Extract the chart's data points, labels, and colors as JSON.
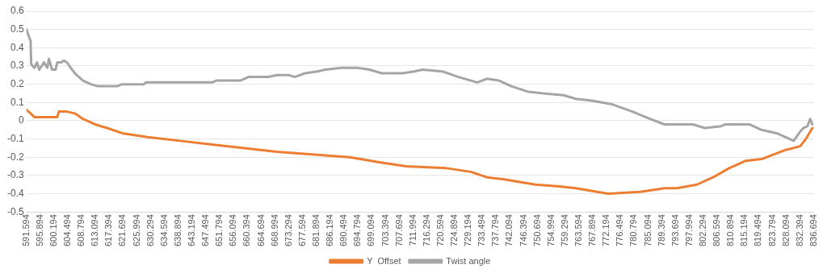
{
  "chart_data": {
    "type": "line",
    "legend": "bottom",
    "grid": "y",
    "marker": "none",
    "line_style": "solid",
    "ylim": [
      -0.5,
      0.6
    ],
    "yticks": [
      -0.5,
      -0.4,
      -0.3,
      -0.2,
      -0.1,
      0,
      0.1,
      0.2,
      0.3,
      0.4,
      0.5,
      0.6
    ],
    "xlim": [
      591.594,
      836.694
    ],
    "xticks": [
      591.594,
      595.894,
      600.194,
      604.494,
      608.794,
      613.094,
      617.394,
      621.694,
      625.994,
      630.294,
      634.594,
      638.894,
      643.194,
      647.494,
      651.794,
      656.094,
      660.394,
      664.694,
      668.994,
      673.294,
      677.594,
      681.894,
      686.194,
      690.494,
      694.794,
      699.094,
      703.394,
      707.694,
      711.994,
      716.294,
      720.594,
      724.894,
      729.194,
      733.494,
      737.794,
      742.094,
      746.394,
      750.694,
      754.994,
      759.294,
      763.594,
      767.894,
      772.194,
      776.494,
      780.794,
      785.094,
      789.394,
      793.694,
      797.994,
      802.294,
      806.594,
      810.894,
      815.194,
      819.494,
      823.794,
      828.094,
      832.394,
      836.694
    ],
    "series": [
      {
        "name": "Y  Offset",
        "color": "#ed7d31",
        "x": [
          591.6,
          592.9,
          594.1,
          596.6,
          599.1,
          601.2,
          601.7,
          604.2,
          606.7,
          609.2,
          613.0,
          616.7,
          621.8,
          629.3,
          639.4,
          649.4,
          659.5,
          669.5,
          677.1,
          692.2,
          702.2,
          709.8,
          722.3,
          729.9,
          734.9,
          739.9,
          750.0,
          757.5,
          762.6,
          772.6,
          782.7,
          790.2,
          794.0,
          800.3,
          805.3,
          810.3,
          815.4,
          820.4,
          827.9,
          832.4,
          834.2,
          836.2
        ],
        "values": [
          0.06,
          0.04,
          0.02,
          0.02,
          0.02,
          0.02,
          0.05,
          0.05,
          0.04,
          0.01,
          -0.02,
          -0.04,
          -0.07,
          -0.09,
          -0.11,
          -0.13,
          -0.15,
          -0.17,
          -0.18,
          -0.2,
          -0.23,
          -0.25,
          -0.26,
          -0.28,
          -0.31,
          -0.32,
          -0.35,
          -0.36,
          -0.37,
          -0.4,
          -0.39,
          -0.37,
          -0.37,
          -0.35,
          -0.31,
          -0.26,
          -0.22,
          -0.21,
          -0.16,
          -0.14,
          -0.1,
          -0.04
        ]
      },
      {
        "name": "Twist angle",
        "color": "#a5a5a5",
        "x": [
          591.6,
          592.6,
          592.9,
          593.1,
          594.1,
          594.9,
          595.6,
          597.1,
          598.1,
          598.6,
          599.6,
          600.7,
          601.2,
          602.4,
          603.2,
          604.2,
          605.4,
          606.7,
          609.2,
          611.7,
          613.7,
          620.0,
          621.3,
          628.1,
          628.8,
          649.4,
          650.7,
          658.2,
          660.7,
          667.0,
          669.5,
          673.3,
          675.1,
          678.3,
          682.1,
          684.6,
          689.6,
          694.7,
          698.4,
          702.2,
          708.5,
          712.3,
          714.8,
          721.1,
          726.1,
          731.9,
          734.9,
          738.7,
          742.4,
          747.5,
          752.5,
          758.8,
          762.6,
          767.6,
          773.9,
          780.2,
          785.7,
          790.2,
          799.0,
          802.8,
          807.8,
          809.1,
          816.6,
          820.4,
          825.4,
          830.4,
          832.4,
          833.4,
          834.7,
          835.5,
          836.2
        ],
        "values": [
          0.5,
          0.45,
          0.44,
          0.31,
          0.29,
          0.32,
          0.28,
          0.32,
          0.29,
          0.34,
          0.28,
          0.28,
          0.32,
          0.32,
          0.33,
          0.32,
          0.29,
          0.26,
          0.22,
          0.2,
          0.19,
          0.19,
          0.2,
          0.2,
          0.21,
          0.21,
          0.22,
          0.22,
          0.24,
          0.24,
          0.25,
          0.25,
          0.24,
          0.26,
          0.27,
          0.28,
          0.29,
          0.29,
          0.28,
          0.26,
          0.26,
          0.27,
          0.28,
          0.27,
          0.24,
          0.21,
          0.23,
          0.22,
          0.19,
          0.16,
          0.15,
          0.14,
          0.12,
          0.11,
          0.09,
          0.05,
          0.01,
          -0.02,
          -0.02,
          -0.04,
          -0.03,
          -0.02,
          -0.02,
          -0.05,
          -0.07,
          -0.11,
          -0.06,
          -0.04,
          -0.03,
          0.01,
          -0.02
        ]
      }
    ]
  }
}
